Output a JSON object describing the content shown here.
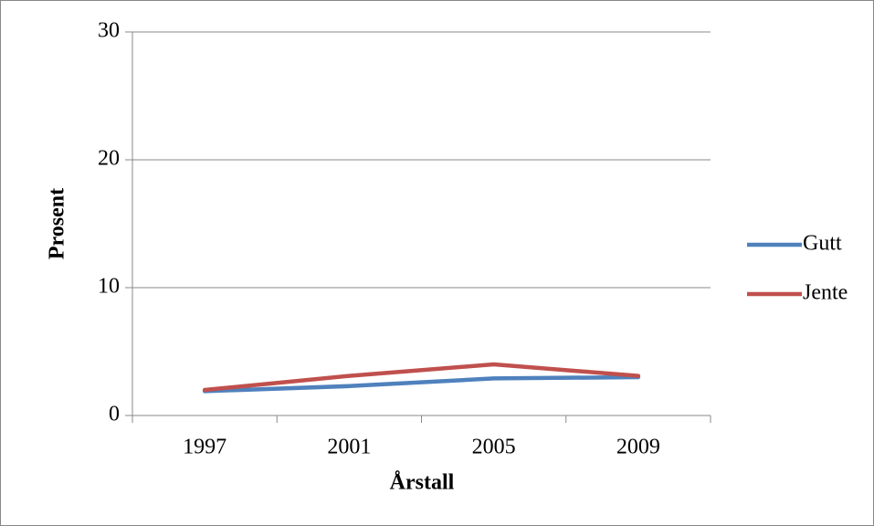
{
  "chart_data": {
    "type": "line",
    "categories": [
      "1997",
      "2001",
      "2005",
      "2009"
    ],
    "series": [
      {
        "name": "Gutt",
        "color": "#4f81bd",
        "values": [
          1.9,
          2.3,
          2.9,
          3.0
        ]
      },
      {
        "name": "Jente",
        "color": "#c0504d",
        "values": [
          2.0,
          3.1,
          4.0,
          3.1
        ]
      }
    ],
    "x_label": "Årstall",
    "y_label": "Prosent",
    "ylim": [
      0,
      30
    ],
    "yticks": [
      0,
      10,
      20,
      30
    ],
    "grid": true,
    "legend": "right"
  }
}
